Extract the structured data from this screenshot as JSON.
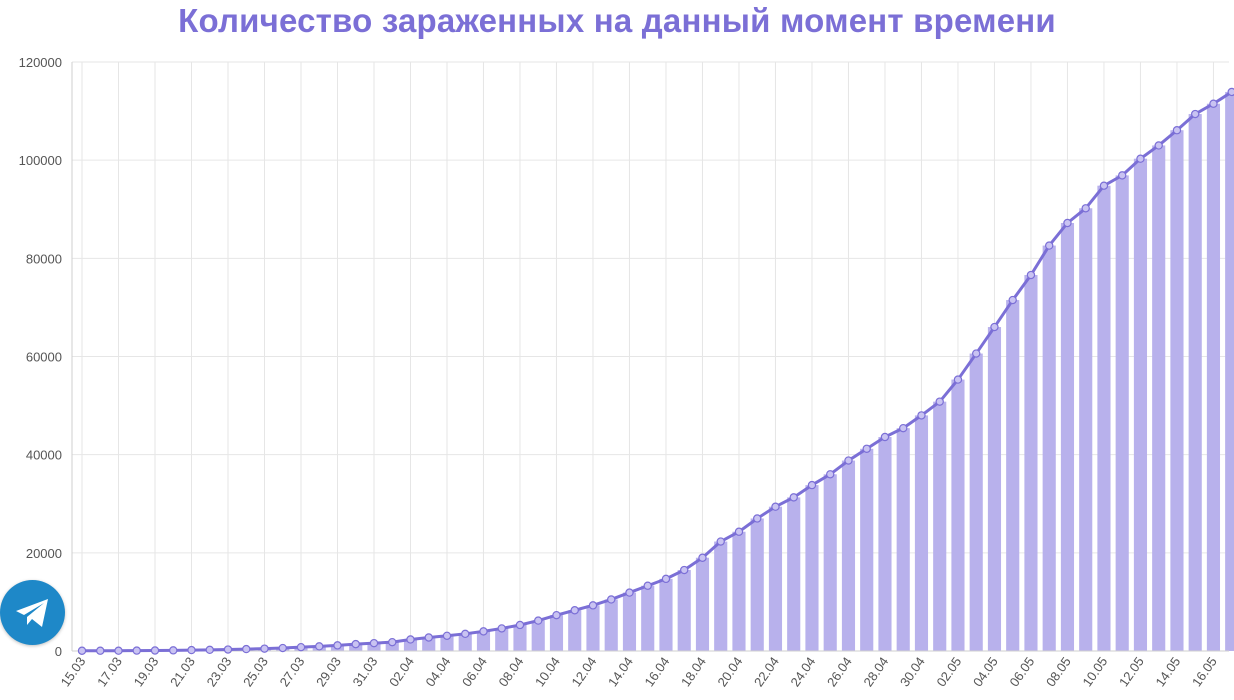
{
  "chart_data": {
    "type": "bar",
    "title": "Количество зараженных на данный момент времени",
    "ylim": [
      0,
      120000
    ],
    "yticks": [
      "120000",
      "100000",
      "80000",
      "60000",
      "40000",
      "20000",
      "0"
    ],
    "xtick_labels": [
      "15.03",
      "17.03",
      "19.03",
      "21.03",
      "23.03",
      "25.03",
      "27.03",
      "29.03",
      "31.03",
      "02.04",
      "04.04",
      "06.04",
      "08.04",
      "10.04",
      "12.04",
      "14.04",
      "16.04",
      "18.04",
      "20.04",
      "22.04",
      "24.04",
      "26.04",
      "28.04",
      "30.04",
      "02.05",
      "04.05",
      "06.05",
      "08.05",
      "10.05",
      "12.05",
      "14.05",
      "16.05"
    ],
    "grid": true,
    "colors": {
      "bar": "#b8b1ec",
      "line": "#7b6fd6",
      "title": "#7b6fd6",
      "grid": "#e6e6e6"
    },
    "series": [
      {
        "values": [
          52,
          56,
          60,
          80,
          100,
          130,
          190,
          240,
          300,
          390,
          480,
          600,
          780,
          950,
          1150,
          1400,
          1600,
          1800,
          2350,
          2750,
          3100,
          3500,
          4000,
          4600,
          5300,
          6200,
          7300,
          8300,
          9300,
          10500,
          11900,
          13300,
          14700,
          16500,
          19000,
          22300,
          24300,
          27000,
          29400,
          31300,
          33800,
          36000,
          38800,
          41200,
          43600,
          45400,
          48000,
          50800,
          55300,
          60600,
          66000,
          71500,
          76600,
          82600,
          87200,
          90200,
          94800,
          96900,
          100300,
          103000,
          106100,
          109400,
          111500,
          113900
        ]
      }
    ]
  },
  "telegram": {
    "icon": "telegram-icon",
    "color": "#1e88c8"
  }
}
